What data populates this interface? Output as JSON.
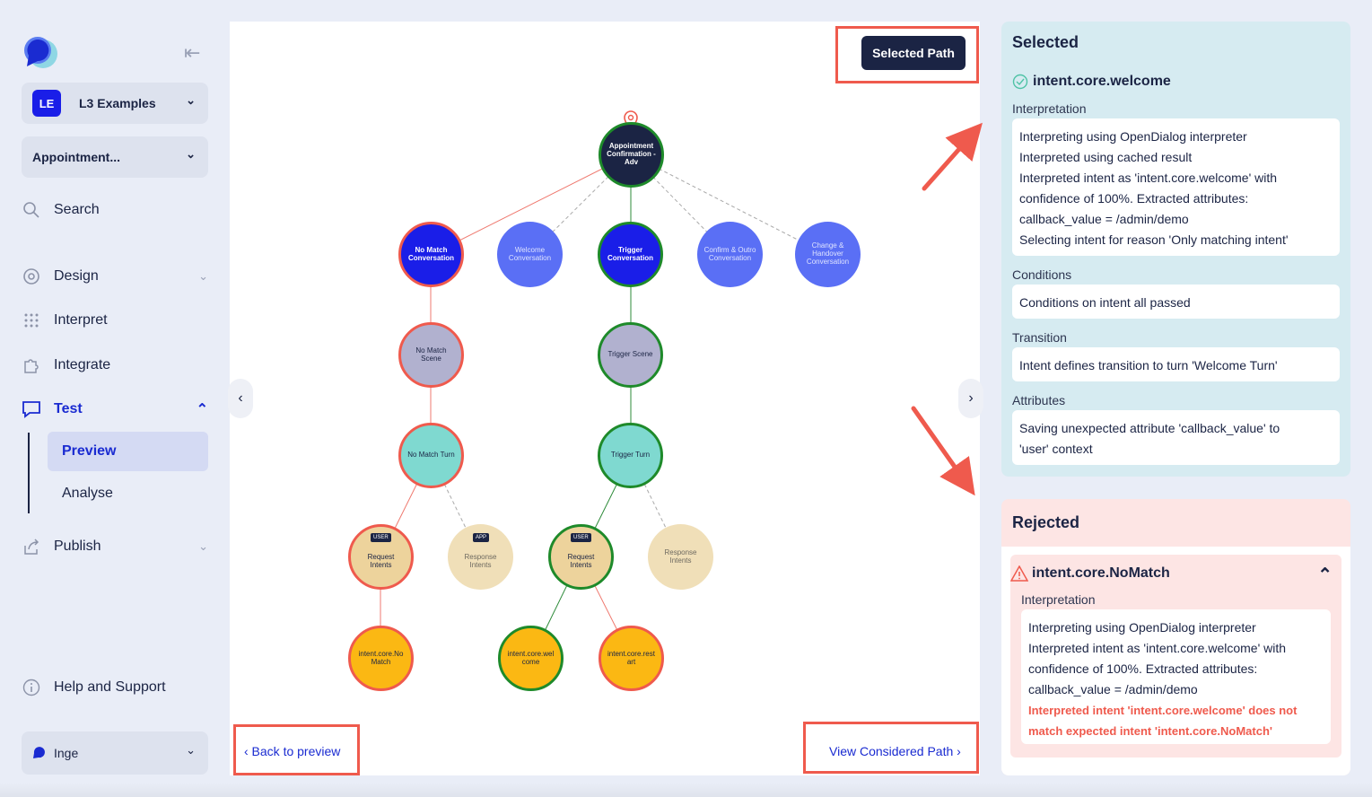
{
  "sidebar": {
    "workspace_badge": "LE",
    "workspace_name": "L3 Examples",
    "scenario_name": "Appointment...",
    "nav": {
      "search": "Search",
      "design": "Design",
      "interpret": "Interpret",
      "integrate": "Integrate",
      "test": "Test",
      "preview": "Preview",
      "analyse": "Analyse",
      "publish": "Publish",
      "help": "Help and Support"
    },
    "user_name": "Inge"
  },
  "canvas": {
    "selected_path_label": "Selected Path",
    "back_label": "‹ Back to preview",
    "considered_label": "View Considered Path ›",
    "nodes": {
      "root": "Appointment Confirmation - Adv",
      "no_match_conv": "No Match Conversation",
      "welcome_conv": "Welcome Conversation",
      "trigger_conv": "Trigger Conversation",
      "confirm_conv": "Confirm & Outro Conversation",
      "handover_conv": "Change & Handover Conversation",
      "no_match_scene": "No Match Scene",
      "trigger_scene": "Trigger Scene",
      "no_match_turn": "No Match Turn",
      "trigger_turn": "Trigger Turn",
      "req_intents_1": "Request Intents",
      "resp_intents_1": "Response Intents",
      "req_intents_2": "Request Intents",
      "resp_intents_2": "Response Intents",
      "intent_nomatch": "intent.core.NoMatch",
      "intent_welcome": "intent.core.welcome",
      "intent_restart": "intent.core.restart",
      "chip_user": "USER",
      "chip_app": "APP"
    },
    "colors": {
      "selected": "#1e8a2a",
      "rejected": "#ef5a4d",
      "conversation": "#1a1ee8"
    }
  },
  "selected": {
    "title": "Selected",
    "intent": "intent.core.welcome",
    "interpretation_label": "Interpretation",
    "interpretation_lines": [
      "Interpreting using OpenDialog interpreter",
      "Interpreted using cached result",
      "Interpreted intent as 'intent.core.welcome' with",
      "confidence of 100%. Extracted attributes:",
      "callback_value = /admin/demo",
      "Selecting intent for reason 'Only matching intent'"
    ],
    "conditions_label": "Conditions",
    "conditions_text": "Conditions on intent all passed",
    "transition_label": "Transition",
    "transition_text": "Intent defines transition to turn 'Welcome Turn'",
    "attributes_label": "Attributes",
    "attributes_lines": [
      "Saving unexpected attribute 'callback_value' to",
      "'user' context"
    ]
  },
  "rejected": {
    "title": "Rejected",
    "intent": "intent.core.NoMatch",
    "interpretation_label": "Interpretation",
    "interpretation_lines": [
      "Interpreting using OpenDialog interpreter",
      "Interpreted intent as 'intent.core.welcome' with",
      "confidence of 100%. Extracted attributes:",
      "callback_value = /admin/demo"
    ],
    "error_lines": [
      "Interpreted intent 'intent.core.welcome' does not",
      "match expected intent 'intent.core.NoMatch'"
    ]
  }
}
